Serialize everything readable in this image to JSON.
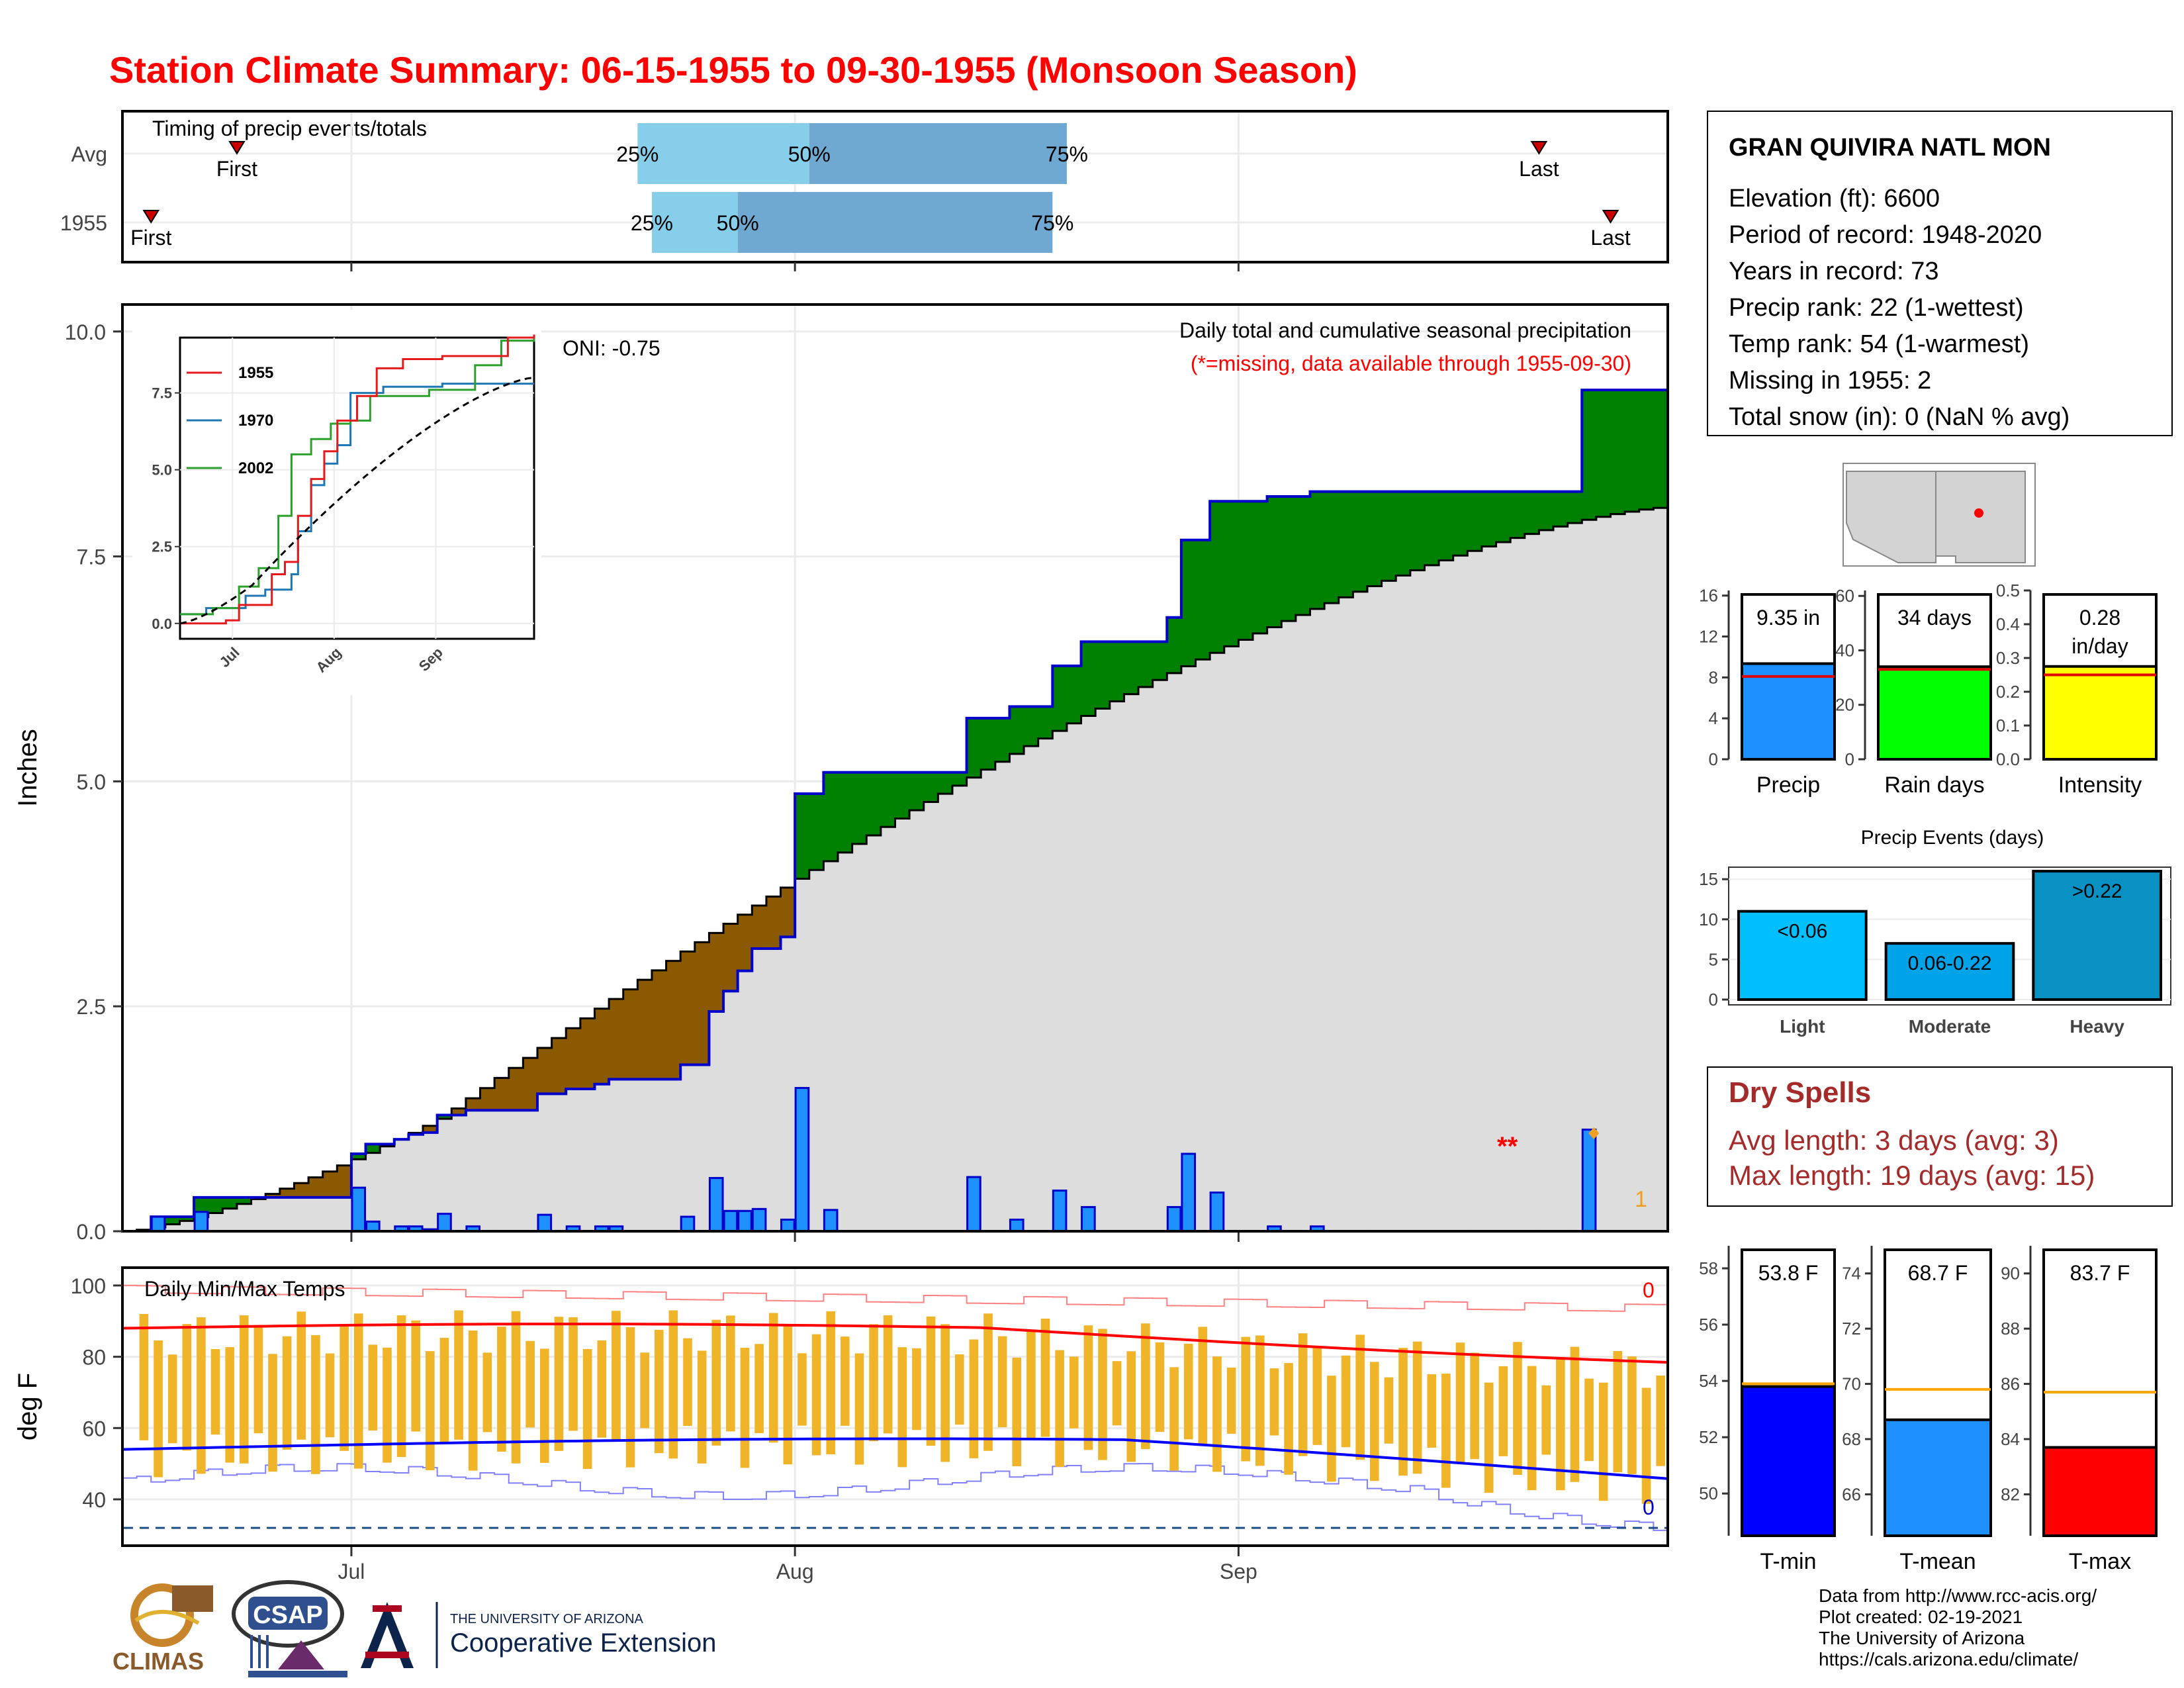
{
  "title": "Station Climate Summary: 06-15-1955 to 09-30-1955 (Monsoon Season)",
  "timing_panel": {
    "title": "Timing of precip events/totals",
    "rows": [
      {
        "label": "Avg",
        "first_label": "First",
        "last_label": "Last",
        "first": "1955-06-23",
        "p25": "1955-07-21",
        "p50": "1955-08-02",
        "p75": "1955-08-20",
        "last": "1955-09-22"
      },
      {
        "label": "1955",
        "first_label": "First",
        "last_label": "Last",
        "first": "1955-06-17",
        "p25": "1955-07-22",
        "p50": "1955-07-28",
        "p75": "1955-08-19",
        "last": "1955-09-27"
      }
    ],
    "pct_labels": [
      "25%",
      "50%",
      "75%"
    ]
  },
  "station": {
    "name": "GRAN QUIVIRA NATL MON",
    "lines": [
      "Elevation (ft): 6600",
      "Period of record: 1948-2020",
      "Years in record: 73",
      "Precip rank: 22 (1-wettest)",
      "Temp rank: 54 (1-warmest)",
      "Missing in 1955: 2",
      "Total snow (in): 0 (NaN % avg)"
    ]
  },
  "main_chart": {
    "ylabel": "Inches",
    "y_ticks": [
      "0.0",
      "2.5",
      "5.0",
      "7.5",
      "10.0"
    ],
    "ylim": [
      0,
      10.3
    ],
    "x_ticks": [
      {
        "label": "Jul",
        "date": "1955-07-01"
      },
      {
        "label": "Aug",
        "date": "1955-08-01"
      },
      {
        "label": "Sep",
        "date": "1955-09-01"
      }
    ],
    "legend_title": "Daily total and cumulative seasonal precipitation",
    "legend_note": "(*=missing, data available through 1955-09-30)",
    "oni": "ONI: -0.75",
    "missing_marker": "**",
    "count_label": "1"
  },
  "inset": {
    "series_names": [
      "1955",
      "1970",
      "2002"
    ],
    "y_ticks": [
      "0.0",
      "2.5",
      "5.0",
      "7.5"
    ],
    "x_ticks": [
      "Jul",
      "Aug",
      "Sep"
    ]
  },
  "bar_panels": {
    "precip": {
      "label": "Precip",
      "value": 9.35,
      "value_label": "9.35 in",
      "avg": 8.1,
      "ylim": [
        0,
        16.5
      ],
      "ticks": [
        "0",
        "4",
        "8",
        "12",
        "16"
      ],
      "color": "#1e90ff"
    },
    "rain_days": {
      "label": "Rain days",
      "value": 34,
      "value_label": "34 days",
      "avg": 33,
      "ylim": [
        0,
        62
      ],
      "ticks": [
        "0",
        "20",
        "40",
        "60"
      ],
      "color": "#00ff00"
    },
    "intensity": {
      "label": "Intensity",
      "value": 0.275,
      "value_label": "0.28",
      "value_unit": "in/day",
      "avg": 0.25,
      "ylim": [
        0,
        0.5
      ],
      "ticks": [
        "0.0",
        "0.1",
        "0.2",
        "0.3",
        "0.4",
        "0.5"
      ],
      "color": "#ffff00"
    }
  },
  "events": {
    "title": "Precip Events (days)",
    "ticks": [
      "0",
      "5",
      "10",
      "15"
    ],
    "ylim": [
      0,
      16.5
    ],
    "bars": [
      {
        "name": "Light",
        "value": 11,
        "label": "<0.06",
        "color": "#00bfff"
      },
      {
        "name": "Moderate",
        "value": 7,
        "label": "0.06-0.22",
        "color": "#00a2e8"
      },
      {
        "name": "Heavy",
        "value": 16,
        "label": ">0.22",
        "color": "#0a91c4"
      }
    ]
  },
  "dry_spells": {
    "title": "Dry Spells",
    "avg_line": "Avg length: 3 days (avg: 3)",
    "max_line": "Max length: 19 days (avg: 15)"
  },
  "temp_chart": {
    "ylabel": "deg F",
    "title": "Daily Min/Max Temps",
    "y_ticks": [
      "40",
      "60",
      "80",
      "100"
    ],
    "ylim": [
      27,
      105
    ],
    "count_top": "0",
    "count_bottom": "0",
    "freeze": 32
  },
  "temp_bars": {
    "tmin": {
      "label": "T-min",
      "value": 53.8,
      "value_label": "53.8 F",
      "avg": 53.9,
      "ylim": [
        48.5,
        58.8
      ],
      "ticks": [
        "50",
        "52",
        "54",
        "56",
        "58"
      ],
      "color": "#0000ff"
    },
    "tmean": {
      "label": "T-mean",
      "value": 68.7,
      "value_label": "68.7 F",
      "avg": 69.8,
      "ylim": [
        64.5,
        75
      ],
      "ticks": [
        "66",
        "68",
        "70",
        "72",
        "74"
      ],
      "color": "#1e90ff"
    },
    "tmax": {
      "label": "T-max",
      "value": 83.7,
      "value_label": "83.7 F",
      "avg": 85.7,
      "ylim": [
        80.5,
        91
      ],
      "ticks": [
        "82",
        "84",
        "86",
        "88",
        "90"
      ],
      "color": "#ff0000"
    }
  },
  "footer": {
    "lines": [
      "Data from http://www.rcc-acis.org/",
      "Plot created: 02-19-2021",
      "The University of Arizona",
      "https://cals.arizona.edu/climate/"
    ],
    "climas": "CLIMAS",
    "csap": "CSAP",
    "ua_small": "THE UNIVERSITY OF ARIZONA",
    "ua_big": "Cooperative Extension"
  },
  "colors": {
    "title": "#ff0000",
    "above": "#008000",
    "below": "#8b5a00",
    "cum": "#0000cd",
    "avg_fill": "#dddddd",
    "daily": "#1e90ff",
    "tmax": "#ff0000",
    "tmin": "#0000ff",
    "range": "#f0b429"
  }
}
